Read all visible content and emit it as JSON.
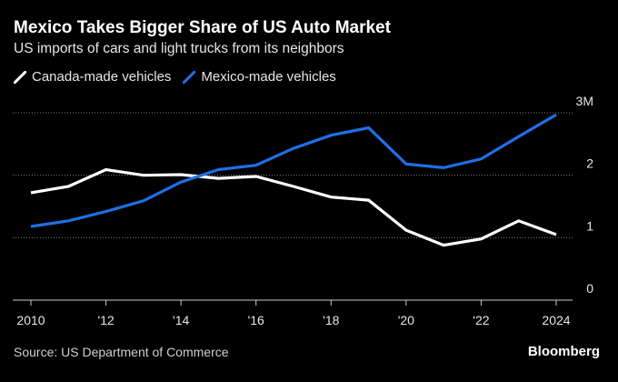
{
  "title": "Mexico Takes Bigger Share of US Auto Market",
  "subtitle": "US imports of cars and light trucks from its neighbors",
  "source": "Source: US Department of Commerce",
  "brand": "Bloomberg",
  "colors": {
    "background": "#000000",
    "canada": "#ffffff",
    "mexico": "#1f6fe6",
    "grid": "#7a7a7a"
  },
  "chart_data": {
    "type": "line",
    "title": "Mexico Takes Bigger Share of US Auto Market",
    "subtitle": "US imports of cars and light trucks from its neighbors",
    "xlabel": "",
    "ylabel": "",
    "x": [
      2010,
      2011,
      2012,
      2013,
      2014,
      2015,
      2016,
      2017,
      2018,
      2019,
      2020,
      2021,
      2022,
      2023,
      2024
    ],
    "xlim": [
      2010,
      2024
    ],
    "ylim": [
      0,
      3
    ],
    "x_ticks": [
      2010,
      2012,
      2014,
      2016,
      2018,
      2020,
      2022,
      2024
    ],
    "x_tick_labels": [
      "2010",
      "'12",
      "'14",
      "'16",
      "'18",
      "'20",
      "'22",
      "2024"
    ],
    "y_ticks": [
      0,
      1,
      2,
      3
    ],
    "y_tick_labels": [
      "0",
      "1",
      "2",
      "3M"
    ],
    "y_axis_side": "right",
    "grid": "horizontal dotted",
    "legend_position": "top-left",
    "series": [
      {
        "name": "Canada-made vehicles",
        "color": "#ffffff",
        "values": [
          1.72,
          1.82,
          2.09,
          2.0,
          2.01,
          1.95,
          1.98,
          1.82,
          1.65,
          1.6,
          1.12,
          0.88,
          0.98,
          1.27,
          1.05
        ]
      },
      {
        "name": "Mexico-made vehicles",
        "color": "#1f6fe6",
        "values": [
          1.18,
          1.27,
          1.42,
          1.59,
          1.89,
          2.09,
          2.16,
          2.43,
          2.64,
          2.76,
          2.18,
          2.12,
          2.26,
          2.62,
          2.97
        ]
      }
    ]
  }
}
